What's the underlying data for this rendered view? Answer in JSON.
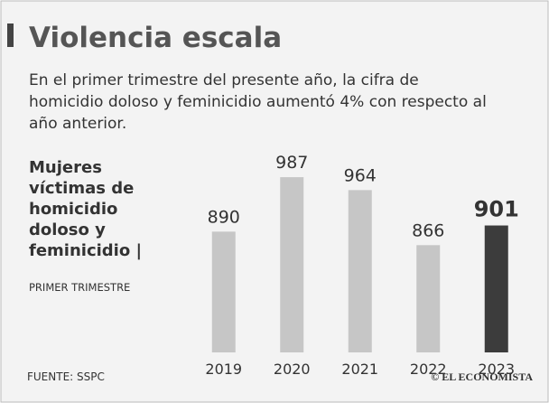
{
  "chart_data": {
    "type": "bar",
    "title": "Violencia escala",
    "subtitle": [
      "En el primer trimestre del presente año, la cifra de",
      "homicidio doloso y feminicidio aumentó 4% con respecto al",
      "año anterior."
    ],
    "label": [
      "Mujeres",
      "víctimas de",
      "homicidio",
      "doloso y",
      "feminicidio |"
    ],
    "label_note": "PRIMER TRIMESTRE",
    "categories": [
      "2019",
      "2020",
      "2021",
      "2022",
      "2023"
    ],
    "values": [
      890,
      987,
      964,
      866,
      901
    ],
    "colors": [
      "#c6c6c6",
      "#c6c6c6",
      "#c6c6c6",
      "#c6c6c6",
      "#3c3c3c"
    ],
    "value_label_bold": [
      false,
      false,
      false,
      false,
      true
    ],
    "ylim": [
      675,
      1000
    ],
    "source": "FUENTE: SSPC",
    "credit": "© EL ECONOMISTA"
  }
}
